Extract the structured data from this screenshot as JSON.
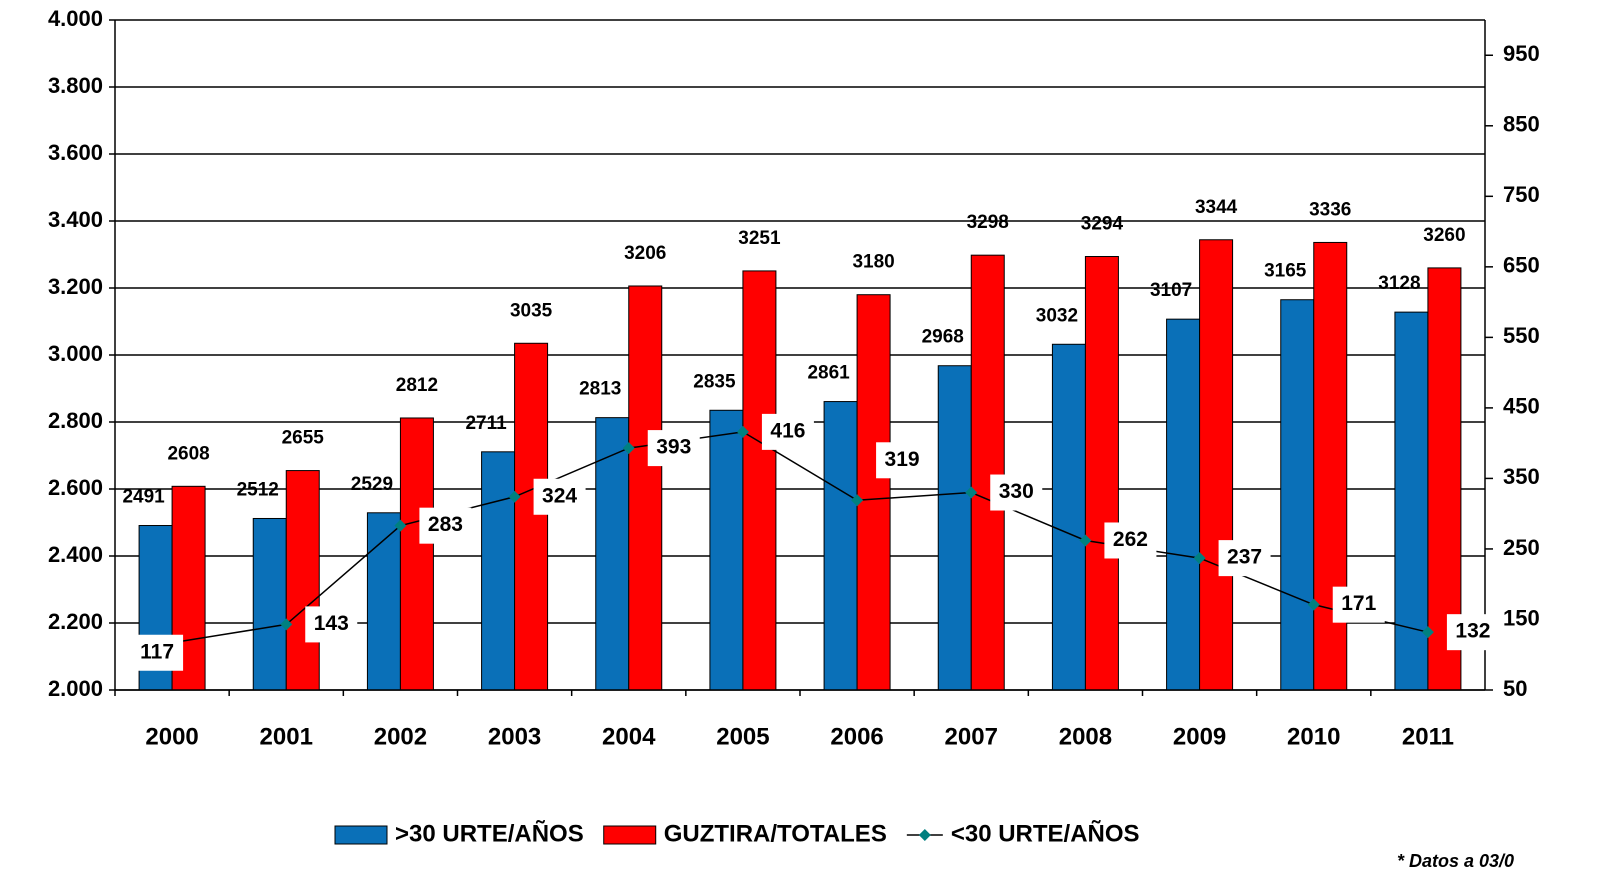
{
  "chart_data": {
    "type": "bar",
    "categories": [
      "2000",
      "2001",
      "2002",
      "2003",
      "2004",
      "2005",
      "2006",
      "2007",
      "2008",
      "2009",
      "2010",
      "2011"
    ],
    "series": [
      {
        "name": ">30 URTE/AÑOS",
        "color": "#0a70b8",
        "values": [
          2491,
          2512,
          2529,
          2711,
          2813,
          2835,
          2861,
          2968,
          3032,
          3107,
          3165,
          3128
        ]
      },
      {
        "name": "GUZTIRA/TOTALES",
        "color": "#ff0000",
        "values": [
          2608,
          2655,
          2812,
          3035,
          3206,
          3251,
          3180,
          3298,
          3294,
          3344,
          3336,
          3260
        ]
      },
      {
        "name": "<30 URTE/AÑOS",
        "color": "#008080",
        "type": "line",
        "axis": "y2",
        "values": [
          117,
          143,
          283,
          324,
          393,
          416,
          319,
          330,
          262,
          237,
          171,
          132
        ]
      }
    ],
    "ylim": [
      2000,
      4000
    ],
    "yticks": [
      {
        "value": 2000,
        "label": "2.000"
      },
      {
        "value": 2200,
        "label": "2.200"
      },
      {
        "value": 2400,
        "label": "2.400"
      },
      {
        "value": 2600,
        "label": "2.600"
      },
      {
        "value": 2800,
        "label": "2.800"
      },
      {
        "value": 3000,
        "label": "3.000"
      },
      {
        "value": 3200,
        "label": "3.200"
      },
      {
        "value": 3400,
        "label": "3.400"
      },
      {
        "value": 3600,
        "label": "3.600"
      },
      {
        "value": 3800,
        "label": "3.800"
      },
      {
        "value": 4000,
        "label": "4.000"
      }
    ],
    "y2lim": [
      50,
      1000
    ],
    "y2ticks": [
      50,
      150,
      250,
      350,
      450,
      550,
      650,
      750,
      850,
      950
    ],
    "grid": true,
    "legend": "bottom",
    "annotations": [
      "* Datos a 03/0"
    ]
  }
}
